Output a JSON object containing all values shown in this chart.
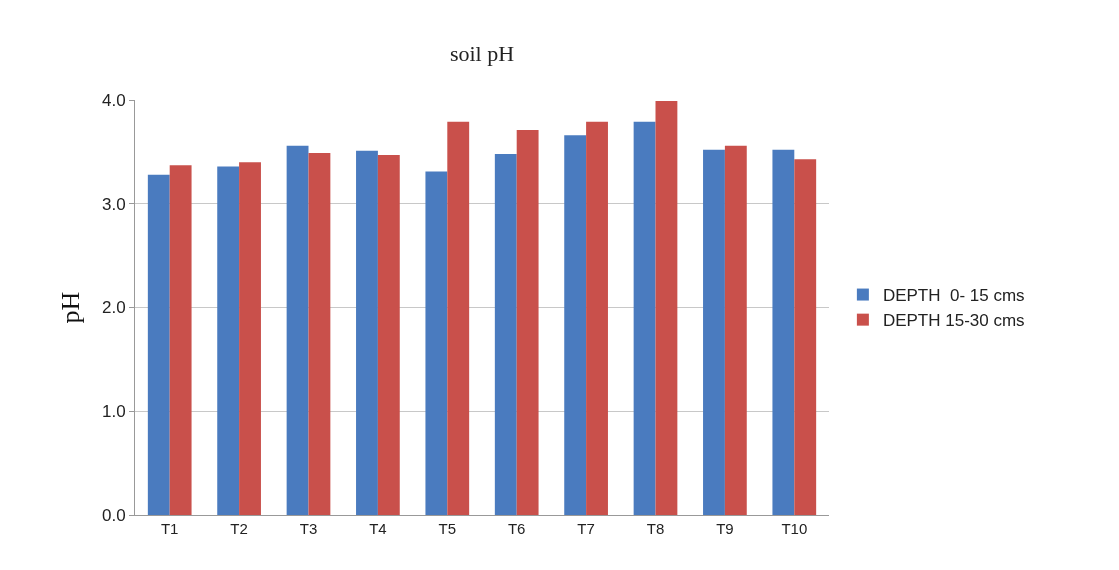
{
  "chart_data": {
    "type": "bar",
    "title": "soil pH",
    "ylabel": "pH",
    "categories": [
      "T1",
      "T2",
      "T3",
      "T4",
      "T5",
      "T6",
      "T7",
      "T8",
      "T9",
      "T10"
    ],
    "series": [
      {
        "name": "DEPTH  0- 15 cms",
        "color": "#4a7bbf",
        "values": [
          3.28,
          3.36,
          3.56,
          3.51,
          3.31,
          3.48,
          3.66,
          3.79,
          3.52,
          3.52
        ]
      },
      {
        "name": "DEPTH 15-30 cms",
        "color": "#c9504b",
        "values": [
          3.37,
          3.4,
          3.49,
          3.47,
          3.79,
          3.71,
          3.79,
          3.99,
          3.56,
          3.43
        ]
      }
    ],
    "ylim": [
      0,
      4
    ],
    "yticks": [
      {
        "value": 0,
        "label": "0.0"
      },
      {
        "value": 1,
        "label": "1.0"
      },
      {
        "value": 2,
        "label": "2.0"
      },
      {
        "value": 3,
        "label": "3.0"
      },
      {
        "value": 4,
        "label": "4.0"
      }
    ],
    "grid": "y",
    "legend": "right"
  }
}
